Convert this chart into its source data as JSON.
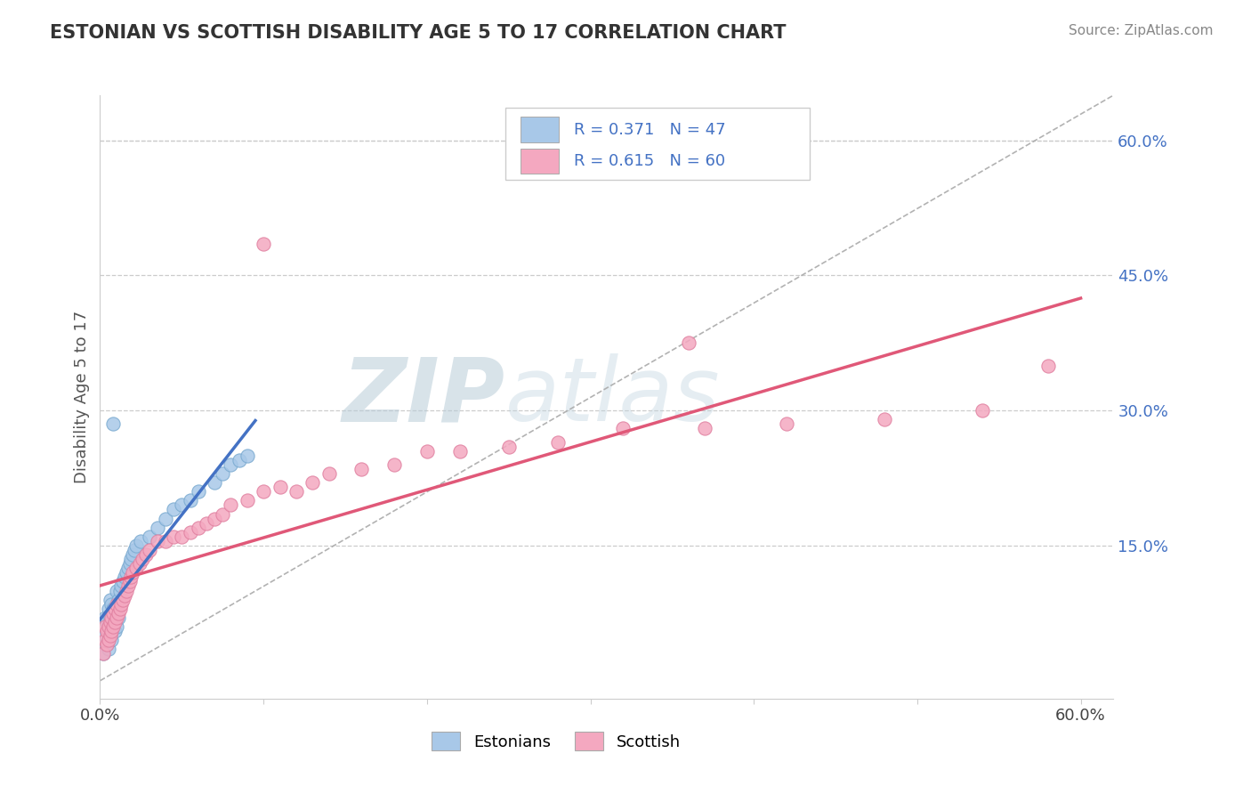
{
  "title": "ESTONIAN VS SCOTTISH DISABILITY AGE 5 TO 17 CORRELATION CHART",
  "source": "Source: ZipAtlas.com",
  "ylabel": "Disability Age 5 to 17",
  "xlim": [
    0.0,
    0.62
  ],
  "ylim": [
    -0.02,
    0.65
  ],
  "yticks_right": [
    0.15,
    0.3,
    0.45,
    0.6
  ],
  "ytick_labels_right": [
    "15.0%",
    "30.0%",
    "45.0%",
    "60.0%"
  ],
  "blue_color": "#A8C8E8",
  "pink_color": "#F4A8C0",
  "blue_edge_color": "#7AAAD0",
  "pink_edge_color": "#E080A0",
  "blue_line_color": "#4472C4",
  "pink_line_color": "#E05878",
  "ref_line_color": "#AAAAAA",
  "watermark": "ZIPatlas",
  "watermark_color_zip": "#B0C8D8",
  "watermark_color_atlas": "#A0C0D0",
  "blue_x": [
    0.002,
    0.003,
    0.003,
    0.004,
    0.004,
    0.005,
    0.005,
    0.005,
    0.006,
    0.006,
    0.006,
    0.007,
    0.007,
    0.007,
    0.008,
    0.008,
    0.009,
    0.009,
    0.01,
    0.01,
    0.01,
    0.011,
    0.011,
    0.012,
    0.013,
    0.014,
    0.015,
    0.016,
    0.017,
    0.018,
    0.019,
    0.02,
    0.021,
    0.022,
    0.025,
    0.03,
    0.035,
    0.04,
    0.045,
    0.05,
    0.055,
    0.06,
    0.07,
    0.075,
    0.08,
    0.085,
    0.09
  ],
  "blue_y": [
    0.03,
    0.05,
    0.07,
    0.04,
    0.065,
    0.035,
    0.055,
    0.08,
    0.05,
    0.07,
    0.09,
    0.045,
    0.065,
    0.085,
    0.06,
    0.08,
    0.055,
    0.075,
    0.06,
    0.08,
    0.1,
    0.07,
    0.09,
    0.1,
    0.105,
    0.11,
    0.115,
    0.12,
    0.125,
    0.13,
    0.135,
    0.14,
    0.145,
    0.15,
    0.155,
    0.16,
    0.17,
    0.18,
    0.19,
    0.195,
    0.2,
    0.21,
    0.22,
    0.23,
    0.24,
    0.245,
    0.25
  ],
  "blue_outlier_x": [
    0.008
  ],
  "blue_outlier_y": [
    0.285
  ],
  "pink_x": [
    0.002,
    0.003,
    0.003,
    0.004,
    0.004,
    0.005,
    0.005,
    0.006,
    0.006,
    0.007,
    0.007,
    0.008,
    0.008,
    0.009,
    0.009,
    0.01,
    0.01,
    0.011,
    0.012,
    0.013,
    0.014,
    0.015,
    0.016,
    0.017,
    0.018,
    0.019,
    0.02,
    0.022,
    0.024,
    0.026,
    0.028,
    0.03,
    0.035,
    0.04,
    0.045,
    0.05,
    0.055,
    0.06,
    0.065,
    0.07,
    0.075,
    0.08,
    0.09,
    0.1,
    0.11,
    0.12,
    0.13,
    0.14,
    0.16,
    0.18,
    0.2,
    0.22,
    0.25,
    0.28,
    0.32,
    0.37,
    0.42,
    0.48,
    0.54,
    0.58
  ],
  "pink_y": [
    0.03,
    0.045,
    0.06,
    0.04,
    0.055,
    0.045,
    0.06,
    0.05,
    0.065,
    0.055,
    0.07,
    0.06,
    0.075,
    0.065,
    0.08,
    0.07,
    0.085,
    0.075,
    0.08,
    0.085,
    0.09,
    0.095,
    0.1,
    0.105,
    0.11,
    0.115,
    0.12,
    0.125,
    0.13,
    0.135,
    0.14,
    0.145,
    0.155,
    0.155,
    0.16,
    0.16,
    0.165,
    0.17,
    0.175,
    0.18,
    0.185,
    0.195,
    0.2,
    0.21,
    0.215,
    0.21,
    0.22,
    0.23,
    0.235,
    0.24,
    0.255,
    0.255,
    0.26,
    0.265,
    0.28,
    0.28,
    0.285,
    0.29,
    0.3,
    0.35
  ],
  "pink_outlier_x": [
    0.1
  ],
  "pink_outlier_y": [
    0.485
  ],
  "pink_outlier2_x": [
    0.36
  ],
  "pink_outlier2_y": [
    0.375
  ],
  "blue_trend_x0": 0.0,
  "blue_trend_x1": 0.095,
  "pink_trend_x0": 0.0,
  "pink_trend_x1": 0.6
}
